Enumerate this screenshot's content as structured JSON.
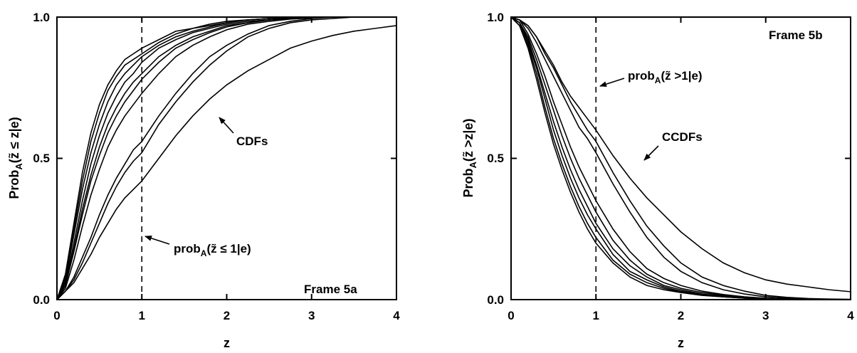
{
  "chart_data": [
    {
      "type": "line",
      "panel_label": "Frame 5a",
      "xlabel": "z",
      "ylabel": "Prob_A(z̃ ≤ z|e)",
      "ylabel_parts": {
        "main": "Prob",
        "sub": "A",
        "rest": "(z̃ ≤ z|e)"
      },
      "xlim": [
        0,
        4
      ],
      "ylim": [
        0,
        1
      ],
      "x_ticks": [
        "0",
        "1",
        "2",
        "3",
        "4"
      ],
      "y_ticks": [
        "0.0",
        "0.5",
        "1.0"
      ],
      "reference_line_x": 1,
      "annotations": [
        {
          "text": "CDFs"
        },
        {
          "text_main": "prob",
          "text_sub": "A",
          "text_rest": "(z̃ ≤ 1|e)"
        }
      ],
      "x": [
        0,
        0.1,
        0.2,
        0.3,
        0.4,
        0.5,
        0.6,
        0.7,
        0.8,
        0.9,
        1.0,
        1.2,
        1.4,
        1.6,
        1.8,
        2.0,
        2.25,
        2.5,
        2.75,
        3.0,
        3.25,
        3.5,
        3.75,
        4.0
      ],
      "series": [
        {
          "values": [
            0,
            0.09,
            0.27,
            0.45,
            0.59,
            0.69,
            0.76,
            0.81,
            0.85,
            0.87,
            0.89,
            0.92,
            0.95,
            0.96,
            0.975,
            0.985,
            0.99,
            0.995,
            0.998,
            0.999,
            1.0,
            1.0,
            1.0,
            1.0
          ]
        },
        {
          "values": [
            0,
            0.08,
            0.25,
            0.42,
            0.56,
            0.66,
            0.74,
            0.79,
            0.83,
            0.85,
            0.87,
            0.91,
            0.94,
            0.96,
            0.97,
            0.98,
            0.99,
            0.995,
            0.998,
            0.999,
            1.0,
            1.0,
            1.0,
            1.0
          ]
        },
        {
          "values": [
            0,
            0.07,
            0.23,
            0.39,
            0.52,
            0.62,
            0.7,
            0.76,
            0.8,
            0.83,
            0.86,
            0.9,
            0.93,
            0.95,
            0.965,
            0.98,
            0.99,
            0.995,
            0.998,
            0.999,
            1.0,
            1.0,
            1.0,
            1.0
          ]
        },
        {
          "values": [
            0,
            0.06,
            0.2,
            0.35,
            0.48,
            0.58,
            0.66,
            0.72,
            0.77,
            0.8,
            0.84,
            0.89,
            0.92,
            0.945,
            0.96,
            0.975,
            0.985,
            0.99,
            0.996,
            0.999,
            1.0,
            1.0,
            1.0,
            1.0
          ]
        },
        {
          "values": [
            0,
            0.05,
            0.18,
            0.32,
            0.44,
            0.54,
            0.62,
            0.68,
            0.73,
            0.77,
            0.8,
            0.86,
            0.9,
            0.93,
            0.95,
            0.97,
            0.98,
            0.99,
            0.995,
            0.998,
            1.0,
            1.0,
            1.0,
            1.0
          ]
        },
        {
          "values": [
            0,
            0.05,
            0.17,
            0.3,
            0.42,
            0.51,
            0.59,
            0.65,
            0.7,
            0.74,
            0.78,
            0.84,
            0.89,
            0.92,
            0.945,
            0.965,
            0.98,
            0.99,
            0.995,
            0.998,
            1.0,
            1.0,
            1.0,
            1.0
          ]
        },
        {
          "values": [
            0,
            0.04,
            0.14,
            0.26,
            0.37,
            0.46,
            0.54,
            0.6,
            0.65,
            0.69,
            0.73,
            0.8,
            0.86,
            0.9,
            0.93,
            0.955,
            0.975,
            0.985,
            0.993,
            0.997,
            1.0,
            1.0,
            1.0,
            1.0
          ]
        },
        {
          "values": [
            0,
            0.03,
            0.08,
            0.15,
            0.22,
            0.3,
            0.37,
            0.43,
            0.48,
            0.53,
            0.56,
            0.65,
            0.73,
            0.8,
            0.86,
            0.9,
            0.94,
            0.97,
            0.985,
            0.995,
            1.0,
            1.0,
            1.0,
            1.0
          ]
        },
        {
          "values": [
            0,
            0.03,
            0.07,
            0.13,
            0.2,
            0.27,
            0.34,
            0.4,
            0.45,
            0.49,
            0.52,
            0.62,
            0.7,
            0.77,
            0.83,
            0.88,
            0.93,
            0.96,
            0.98,
            0.99,
            0.995,
            1.0,
            1.0,
            1.0
          ]
        },
        {
          "values": [
            0,
            0.03,
            0.06,
            0.11,
            0.16,
            0.22,
            0.27,
            0.32,
            0.36,
            0.39,
            0.42,
            0.5,
            0.58,
            0.65,
            0.71,
            0.76,
            0.81,
            0.85,
            0.89,
            0.915,
            0.935,
            0.95,
            0.96,
            0.97
          ]
        }
      ]
    },
    {
      "type": "line",
      "panel_label": "Frame 5b",
      "xlabel": "z",
      "ylabel": "Prob_A(z̃ >z|e)",
      "ylabel_parts": {
        "main": "Prob",
        "sub": "A",
        "rest": "(z̃ >z|e)"
      },
      "xlim": [
        0,
        4
      ],
      "ylim": [
        0,
        1
      ],
      "x_ticks": [
        "0",
        "1",
        "2",
        "3",
        "4"
      ],
      "y_ticks": [
        "0.0",
        "0.5",
        "1.0"
      ],
      "reference_line_x": 1,
      "annotations": [
        {
          "text_main": "prob",
          "text_sub": "A",
          "text_rest": "(z̃ >1|e)"
        },
        {
          "text": "CCDFs"
        }
      ],
      "x": [
        0,
        0.1,
        0.2,
        0.3,
        0.4,
        0.5,
        0.6,
        0.7,
        0.8,
        0.9,
        1.0,
        1.2,
        1.4,
        1.6,
        1.8,
        2.0,
        2.25,
        2.5,
        2.75,
        3.0,
        3.25,
        3.5,
        3.75,
        4.0
      ],
      "series": [
        {
          "values": [
            1.0,
            0.97,
            0.89,
            0.78,
            0.66,
            0.55,
            0.46,
            0.38,
            0.31,
            0.25,
            0.2,
            0.13,
            0.08,
            0.05,
            0.035,
            0.025,
            0.015,
            0.01,
            0.005,
            0.002,
            0.001,
            0.0,
            0.0,
            0.0
          ]
        },
        {
          "values": [
            1.0,
            0.97,
            0.9,
            0.8,
            0.68,
            0.57,
            0.48,
            0.4,
            0.33,
            0.27,
            0.22,
            0.14,
            0.09,
            0.06,
            0.04,
            0.027,
            0.016,
            0.01,
            0.005,
            0.002,
            0.001,
            0.0,
            0.0,
            0.0
          ]
        },
        {
          "values": [
            1.0,
            0.98,
            0.91,
            0.82,
            0.71,
            0.6,
            0.51,
            0.43,
            0.36,
            0.3,
            0.25,
            0.16,
            0.1,
            0.07,
            0.045,
            0.03,
            0.018,
            0.01,
            0.006,
            0.003,
            0.001,
            0.0,
            0.0,
            0.0
          ]
        },
        {
          "values": [
            1.0,
            0.98,
            0.92,
            0.83,
            0.73,
            0.63,
            0.54,
            0.46,
            0.39,
            0.33,
            0.27,
            0.18,
            0.12,
            0.08,
            0.05,
            0.035,
            0.02,
            0.012,
            0.007,
            0.003,
            0.001,
            0.0,
            0.0,
            0.0
          ]
        },
        {
          "values": [
            1.0,
            0.98,
            0.93,
            0.85,
            0.76,
            0.67,
            0.58,
            0.5,
            0.43,
            0.37,
            0.31,
            0.21,
            0.14,
            0.09,
            0.06,
            0.04,
            0.025,
            0.015,
            0.008,
            0.004,
            0.002,
            0.0,
            0.0,
            0.0
          ]
        },
        {
          "values": [
            1.0,
            0.99,
            0.94,
            0.87,
            0.79,
            0.7,
            0.62,
            0.54,
            0.47,
            0.41,
            0.35,
            0.25,
            0.17,
            0.11,
            0.075,
            0.05,
            0.03,
            0.018,
            0.01,
            0.005,
            0.002,
            0.001,
            0.0,
            0.0
          ]
        },
        {
          "values": [
            1.0,
            0.99,
            0.96,
            0.91,
            0.85,
            0.79,
            0.73,
            0.67,
            0.61,
            0.57,
            0.52,
            0.41,
            0.31,
            0.22,
            0.15,
            0.1,
            0.06,
            0.035,
            0.02,
            0.01,
            0.005,
            0.002,
            0.001,
            0.0
          ]
        },
        {
          "values": [
            1.0,
            0.99,
            0.97,
            0.93,
            0.87,
            0.82,
            0.76,
            0.7,
            0.65,
            0.6,
            0.56,
            0.45,
            0.35,
            0.26,
            0.19,
            0.13,
            0.08,
            0.05,
            0.03,
            0.015,
            0.008,
            0.004,
            0.002,
            0.001
          ]
        },
        {
          "values": [
            1.0,
            0.99,
            0.97,
            0.93,
            0.88,
            0.83,
            0.77,
            0.72,
            0.68,
            0.64,
            0.6,
            0.51,
            0.43,
            0.36,
            0.3,
            0.24,
            0.18,
            0.13,
            0.095,
            0.07,
            0.055,
            0.045,
            0.035,
            0.028
          ]
        }
      ]
    }
  ]
}
